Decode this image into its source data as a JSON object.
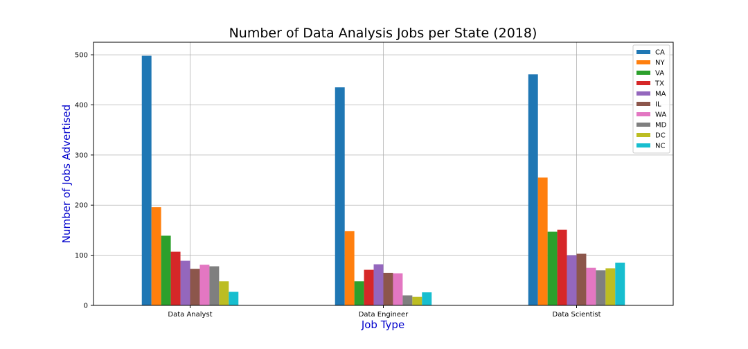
{
  "chart_data": {
    "type": "bar",
    "title": "Number of Data Analysis Jobs per State (2018)",
    "xlabel": "Job Type",
    "ylabel": "Number of Jobs Advertised",
    "categories": [
      "Data Analyst",
      "Data Engineer",
      "Data Scientist"
    ],
    "ylim": [
      0,
      525
    ],
    "yticks": [
      0,
      100,
      200,
      300,
      400,
      500
    ],
    "grid": true,
    "legend_position": "top-right",
    "series": [
      {
        "name": "CA",
        "color": "#1f77b4",
        "values": [
          498,
          435,
          461
        ]
      },
      {
        "name": "NY",
        "color": "#ff7f0e",
        "values": [
          196,
          148,
          255
        ]
      },
      {
        "name": "VA",
        "color": "#2ca02c",
        "values": [
          139,
          48,
          147
        ]
      },
      {
        "name": "TX",
        "color": "#d62728",
        "values": [
          107,
          71,
          151
        ]
      },
      {
        "name": "MA",
        "color": "#9467bd",
        "values": [
          89,
          82,
          100
        ]
      },
      {
        "name": "IL",
        "color": "#8c564b",
        "values": [
          73,
          65,
          103
        ]
      },
      {
        "name": "WA",
        "color": "#e377c2",
        "values": [
          81,
          64,
          75
        ]
      },
      {
        "name": "MD",
        "color": "#7f7f7f",
        "values": [
          78,
          20,
          70
        ]
      },
      {
        "name": "DC",
        "color": "#bcbd22",
        "values": [
          48,
          17,
          74
        ]
      },
      {
        "name": "NC",
        "color": "#17becf",
        "values": [
          27,
          26,
          85
        ]
      }
    ]
  }
}
